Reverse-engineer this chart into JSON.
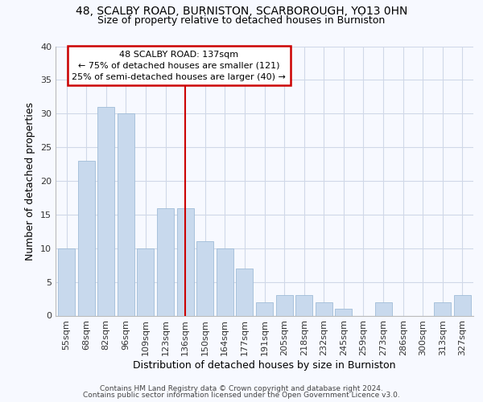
{
  "title1": "48, SCALBY ROAD, BURNISTON, SCARBOROUGH, YO13 0HN",
  "title2": "Size of property relative to detached houses in Burniston",
  "xlabel": "Distribution of detached houses by size in Burniston",
  "ylabel": "Number of detached properties",
  "categories": [
    "55sqm",
    "68sqm",
    "82sqm",
    "96sqm",
    "109sqm",
    "123sqm",
    "136sqm",
    "150sqm",
    "164sqm",
    "177sqm",
    "191sqm",
    "205sqm",
    "218sqm",
    "232sqm",
    "245sqm",
    "259sqm",
    "273sqm",
    "286sqm",
    "300sqm",
    "313sqm",
    "327sqm"
  ],
  "values": [
    10,
    23,
    31,
    30,
    10,
    16,
    16,
    11,
    10,
    7,
    2,
    3,
    3,
    2,
    1,
    0,
    2,
    0,
    0,
    2,
    3
  ],
  "bar_color": "#c8d9ed",
  "bar_edge_color": "#a0bcd8",
  "background_color": "#f7f9ff",
  "grid_color": "#d0d8e8",
  "annotation_text": "48 SCALBY ROAD: 137sqm\n← 75% of detached houses are smaller (121)\n25% of semi-detached houses are larger (40) →",
  "vline_x_index": 6,
  "vline_color": "#cc0000",
  "annotation_box_edgecolor": "#cc0000",
  "ylim": [
    0,
    40
  ],
  "yticks": [
    0,
    5,
    10,
    15,
    20,
    25,
    30,
    35,
    40
  ],
  "footer1": "Contains HM Land Registry data © Crown copyright and database right 2024.",
  "footer2": "Contains public sector information licensed under the Open Government Licence v3.0.",
  "title1_fontsize": 10,
  "title2_fontsize": 9,
  "ylabel_fontsize": 9,
  "xlabel_fontsize": 9,
  "tick_fontsize": 8,
  "footer_fontsize": 6.5,
  "annotation_fontsize": 8
}
